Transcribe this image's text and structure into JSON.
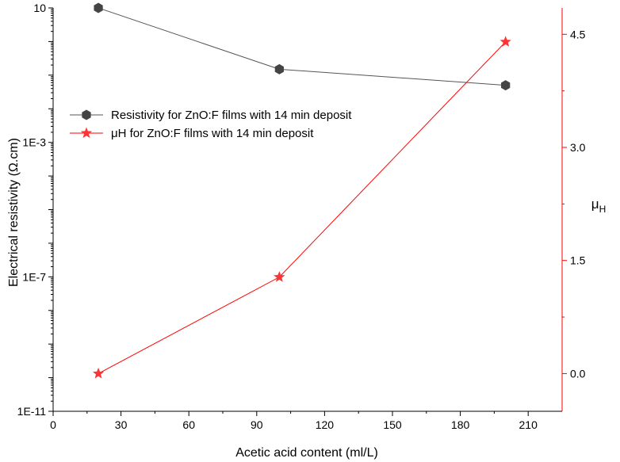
{
  "chart_data": {
    "type": "line",
    "x": [
      20,
      100,
      200
    ],
    "xlabel": "Acetic acid content (ml/L)",
    "xlim": [
      0,
      225
    ],
    "x_ticks": [
      "0",
      "30",
      "60",
      "90",
      "120",
      "150",
      "180",
      "210"
    ],
    "x_tick_values": [
      0,
      30,
      60,
      90,
      120,
      150,
      180,
      210
    ],
    "ylabel": "Electrical resistivity (Ω.cm)",
    "y_scale": "log",
    "ylim": [
      1e-11,
      10
    ],
    "y_ticks": [
      "1E-11",
      "1E-7",
      "1E-3",
      "10"
    ],
    "y_tick_values": [
      1e-11,
      1e-07,
      0.001,
      10
    ],
    "y2label": "μH",
    "y2_label_main": "μ",
    "y2_label_sub": "H",
    "y2lim": [
      -0.5,
      4.85
    ],
    "y2_ticks": [
      "0.0",
      "1.5",
      "3.0",
      "4.5"
    ],
    "y2_tick_values": [
      0,
      1.5,
      3.0,
      4.5
    ],
    "grid": false,
    "legend_position": "upper-left",
    "series": [
      {
        "name": "Resistivity for ZnO:F films with 14 min deposit",
        "axis": "left",
        "color": "#555555",
        "marker": "hexagon",
        "marker_color": "#444444",
        "values": [
          10,
          0.15,
          0.05
        ]
      },
      {
        "name": "μH for ZnO:F films with 14 min deposit",
        "axis": "right",
        "color": "#ff0000",
        "marker": "star",
        "marker_color": "#ff3333",
        "values": [
          0.0,
          1.28,
          4.4
        ]
      }
    ],
    "colors": {
      "left_axis": "#000000",
      "right_axis": "#ff0000"
    }
  }
}
